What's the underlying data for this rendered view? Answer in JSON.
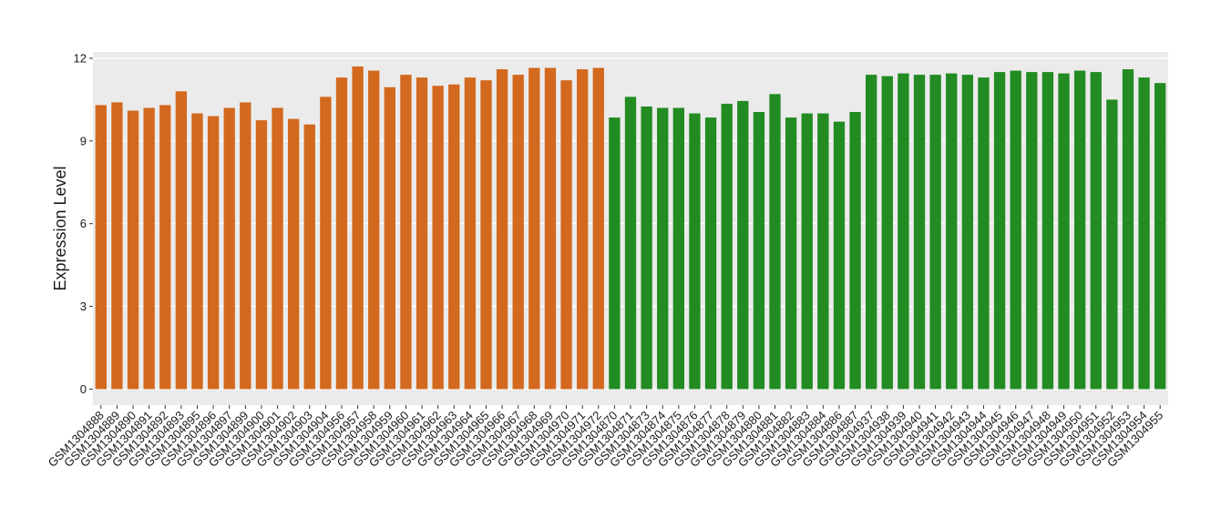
{
  "chart_data": {
    "type": "bar",
    "y_label": "Expression Level",
    "ylim": [
      -0.58,
      12.23
    ],
    "yticks": [
      0,
      3,
      6,
      9,
      12
    ],
    "grid": true,
    "series": [
      {
        "color": "#d2691e",
        "categories": [
          "GSM1304888",
          "GSM1304889",
          "GSM1304890",
          "GSM1304891",
          "GSM1304892",
          "GSM1304893",
          "GSM1304895",
          "GSM1304896",
          "GSM1304897",
          "GSM1304899",
          "GSM1304900",
          "GSM1304901",
          "GSM1304902",
          "GSM1304903",
          "GSM1304904",
          "GSM1304956",
          "GSM1304957",
          "GSM1304958",
          "GSM1304959",
          "GSM1304960",
          "GSM1304961",
          "GSM1304962",
          "GSM1304963",
          "GSM1304964",
          "GSM1304965",
          "GSM1304966",
          "GSM1304967",
          "GSM1304968",
          "GSM1304969",
          "GSM1304970",
          "GSM1304971",
          "GSM1304972"
        ],
        "values": [
          10.3,
          10.4,
          10.1,
          10.2,
          10.3,
          10.8,
          10.0,
          9.9,
          10.2,
          10.4,
          9.75,
          10.2,
          9.8,
          9.6,
          10.6,
          11.3,
          11.7,
          11.55,
          10.95,
          11.4,
          11.3,
          11.0,
          11.05,
          11.3,
          11.2,
          11.6,
          11.4,
          11.65,
          11.65,
          11.2,
          11.6,
          11.65
        ]
      },
      {
        "color": "#228b22",
        "categories": [
          "GSM1304870",
          "GSM1304871",
          "GSM1304873",
          "GSM1304874",
          "GSM1304875",
          "GSM1304876",
          "GSM1304877",
          "GSM1304878",
          "GSM1304879",
          "GSM1304880",
          "GSM1304881",
          "GSM1304882",
          "GSM1304883",
          "GSM1304884",
          "GSM1304886",
          "GSM1304887",
          "GSM1304937",
          "GSM1304938",
          "GSM1304939",
          "GSM1304940",
          "GSM1304941",
          "GSM1304942",
          "GSM1304943",
          "GSM1304944",
          "GSM1304945",
          "GSM1304946",
          "GSM1304947",
          "GSM1304948",
          "GSM1304949",
          "GSM1304950",
          "GSM1304951",
          "GSM1304952",
          "GSM1304953",
          "GSM1304954",
          "GSM1304955"
        ],
        "values": [
          9.85,
          10.6,
          10.25,
          10.2,
          10.2,
          10.0,
          9.85,
          10.35,
          10.45,
          10.05,
          10.7,
          9.85,
          10.0,
          10.0,
          9.7,
          10.05,
          11.4,
          11.35,
          11.45,
          11.4,
          11.4,
          11.45,
          11.4,
          11.3,
          11.5,
          11.55,
          11.5,
          11.5,
          11.45,
          11.55,
          11.5,
          10.5,
          11.6,
          11.3,
          11.1
        ]
      }
    ]
  }
}
